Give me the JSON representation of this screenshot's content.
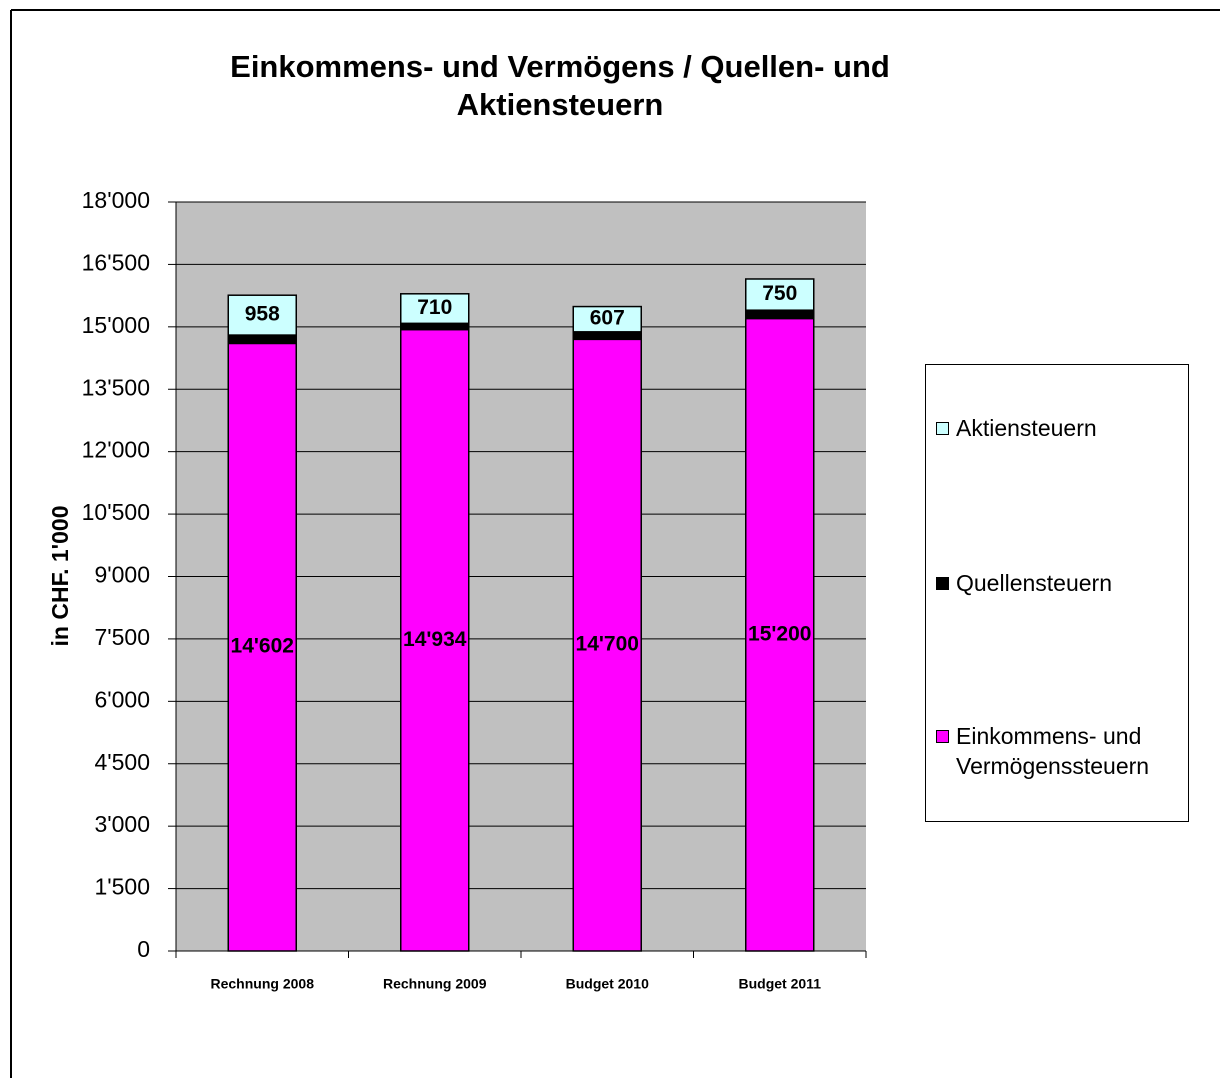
{
  "chart_data": {
    "type": "stacked_bar",
    "title": "Einkommens- und Vermögens / Quellen- und Aktiensteuern",
    "y_label": "in CHF. 1'000",
    "categories": [
      "Rechnung 2008",
      "Rechnung 2009",
      "Budget 2010",
      "Budget 2011"
    ],
    "series": [
      {
        "name": "Einkommens- und Vermögenssteuern",
        "color": "#ff00ff",
        "values": [
          14602,
          14934,
          14700,
          15200
        ],
        "value_labels": [
          "14'602",
          "14'934",
          "14'700",
          "15'200"
        ]
      },
      {
        "name": "Quellensteuern",
        "color": "#000000",
        "values": [
          200,
          150,
          180,
          200
        ]
      },
      {
        "name": "Aktiensteuern",
        "color": "#ccffff",
        "values": [
          958,
          710,
          607,
          750
        ]
      }
    ],
    "ylim": [
      0,
      18000
    ],
    "yticks": [
      0,
      {
        "value": 1500,
        "label": "1'500"
      },
      {
        "value": 3000,
        "label": "3'000"
      },
      {
        "value": 4500,
        "label": "4'500"
      },
      {
        "value": 6000,
        "label": "6'000"
      },
      {
        "value": 7500,
        "label": "7'500"
      },
      {
        "value": 9000,
        "label": "9'000"
      },
      {
        "value": 10500,
        "label": "10'500"
      },
      {
        "value": 12000,
        "label": "12'000"
      },
      {
        "value": 13500,
        "label": "13'500"
      },
      {
        "value": 15000,
        "label": "15'000"
      },
      {
        "value": 16500,
        "label": "16'500"
      },
      {
        "value": 18000,
        "label": "18'000"
      }
    ],
    "grid": true,
    "legend": "right"
  }
}
